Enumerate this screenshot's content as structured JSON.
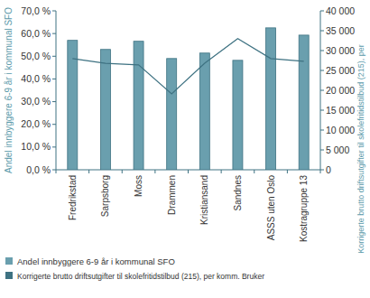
{
  "chart_data": {
    "type": "bar",
    "y_label": "Andel innbyggere 6-9 år i kommunal SFO",
    "y2_label": "Korrigerte brutto driftsutgifter til skolefritidstilbud (215), per",
    "categories": [
      "Fredrikstad",
      "Sarpsborg",
      "Moss",
      "Drammen",
      "Kristiansand",
      "Sandnes",
      "ASSS uten Oslo",
      "Kostragruppe 13"
    ],
    "series": [
      {
        "name": "Andel innbyggere 6-9 år i kommunal SFO",
        "type": "bar",
        "color": "#6a9fae",
        "values": [
          57.0,
          53.0,
          56.6,
          49.0,
          51.4,
          48.2,
          62.5,
          59.3
        ]
      },
      {
        "name": "Korrigerte brutto driftsutgifter til skolefritidstilbud (215), per komm. Bruker",
        "type": "line",
        "color": "#3e7282",
        "axis": "y2",
        "values": [
          28000,
          26800,
          26400,
          19100,
          26800,
          33000,
          28000,
          27300
        ]
      }
    ],
    "ylim": [
      0,
      70
    ],
    "yticks": [
      {
        "value": 0,
        "label": "0,0 %"
      },
      {
        "value": 10,
        "label": "10,0 %"
      },
      {
        "value": 20,
        "label": "20,0 %"
      },
      {
        "value": 30,
        "label": "30,0 %"
      },
      {
        "value": 40,
        "label": "40,0 %"
      },
      {
        "value": 50,
        "label": "50,0 %"
      },
      {
        "value": 60,
        "label": "60,0 %"
      },
      {
        "value": 70,
        "label": "70,0 %"
      }
    ],
    "y2lim": [
      0,
      40000
    ],
    "y2ticks": [
      0,
      {
        "value": 5000,
        "label": "5 000"
      },
      {
        "value": 10000,
        "label": "10 000"
      },
      {
        "value": 15000,
        "label": "15 000"
      },
      {
        "value": 20000,
        "label": "20 000"
      },
      {
        "value": 25000,
        "label": "25 000"
      },
      {
        "value": 30000,
        "label": "30 000"
      },
      {
        "value": 35000,
        "label": "35 000"
      },
      {
        "value": 40000,
        "label": "40 000"
      }
    ],
    "grid": false,
    "legend": "bottom"
  }
}
